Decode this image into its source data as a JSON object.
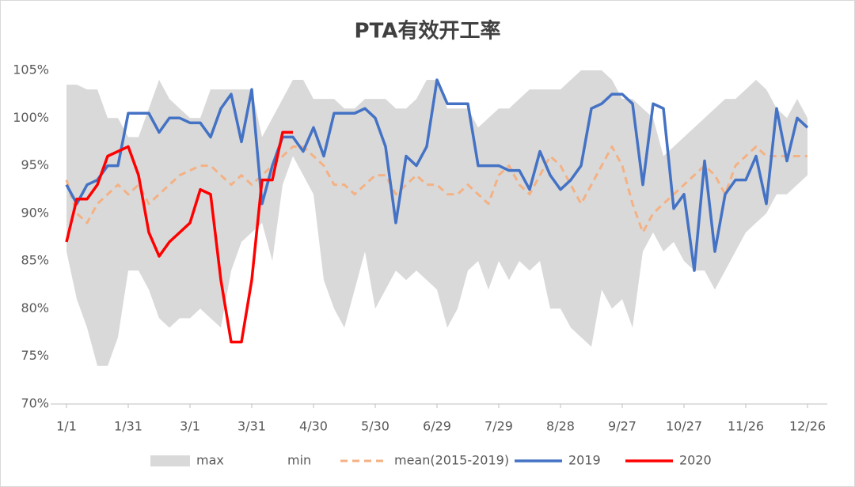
{
  "chart_data": {
    "type": "line",
    "title": "PTA有效开工率",
    "categories": [
      "1/1",
      null,
      null,
      null,
      null,
      null,
      "1/31",
      null,
      null,
      null,
      null,
      null,
      "3/1",
      null,
      null,
      null,
      null,
      null,
      "3/31",
      null,
      null,
      null,
      null,
      null,
      "4/30",
      null,
      null,
      null,
      null,
      null,
      "5/30",
      null,
      null,
      null,
      null,
      null,
      "6/29",
      null,
      null,
      null,
      null,
      null,
      "7/29",
      null,
      null,
      null,
      null,
      null,
      "8/28",
      null,
      null,
      null,
      null,
      null,
      "9/27",
      null,
      null,
      null,
      null,
      null,
      "10/27",
      null,
      null,
      null,
      null,
      null,
      "11/26",
      null,
      null,
      null,
      null,
      null,
      "12/26"
    ],
    "ylim": [
      70,
      105
    ],
    "yticks": [
      {
        "value": 70,
        "label": "70%"
      },
      {
        "value": 75,
        "label": "75%"
      },
      {
        "value": 80,
        "label": "80%"
      },
      {
        "value": 85,
        "label": "85%"
      },
      {
        "value": 90,
        "label": "90%"
      },
      {
        "value": 95,
        "label": "95%"
      },
      {
        "value": 100,
        "label": "100%"
      },
      {
        "value": 105,
        "label": "105%"
      }
    ],
    "series": [
      {
        "name": "max",
        "style": "area",
        "color": "#d9d9d9",
        "values": [
          103.5,
          103.5,
          103,
          103,
          100,
          100,
          98,
          98,
          101,
          104,
          102,
          101,
          100,
          100,
          103,
          103,
          103,
          103,
          103,
          98,
          100,
          102,
          104,
          104,
          102,
          102,
          102,
          101,
          101,
          102,
          102,
          102,
          101,
          101,
          102,
          104,
          104,
          101,
          101,
          101,
          99,
          100,
          101,
          101,
          102,
          103,
          103,
          103,
          103,
          104,
          105,
          105,
          105,
          104,
          102,
          102,
          101,
          100,
          96,
          97,
          98,
          99,
          100,
          101,
          102,
          102,
          103,
          104,
          103,
          101,
          100,
          102,
          100
        ]
      },
      {
        "name": "min",
        "style": "area",
        "color": "#ffffff",
        "values": [
          86,
          81,
          78,
          74,
          74,
          77,
          84,
          84,
          82,
          79,
          78,
          79,
          79,
          80,
          79,
          78,
          84,
          87,
          88,
          89,
          85,
          93,
          96,
          94,
          92,
          83,
          80,
          78,
          82,
          86,
          80,
          82,
          84,
          83,
          84,
          83,
          82,
          78,
          80,
          84,
          85,
          82,
          85,
          83,
          85,
          84,
          85,
          80,
          80,
          78,
          77,
          76,
          82,
          80,
          81,
          78,
          86,
          88,
          86,
          87,
          85,
          84,
          84,
          82,
          84,
          86,
          88,
          89,
          90,
          92,
          92,
          93,
          94
        ]
      },
      {
        "name": "mean(2015-2019)",
        "style": "line",
        "dash": true,
        "color": "#f4b183",
        "values": [
          93.5,
          90,
          89,
          91,
          92,
          93,
          92,
          93,
          91,
          92,
          93,
          94,
          94.5,
          95,
          95,
          94,
          93,
          94,
          93,
          94,
          95,
          96,
          97,
          97,
          96,
          95,
          93,
          93,
          92,
          93,
          94,
          94,
          92,
          93,
          94,
          93,
          93,
          92,
          92,
          93,
          92,
          91,
          94,
          95,
          93,
          92,
          94,
          96,
          95,
          93,
          91,
          93,
          95,
          97,
          95,
          91,
          88,
          90,
          91,
          92,
          93,
          94,
          95,
          94,
          92,
          95,
          96,
          97,
          96,
          96,
          96,
          96,
          96
        ]
      },
      {
        "name": "2019",
        "style": "line",
        "color": "#4472c4",
        "values": [
          93,
          91,
          93,
          93.5,
          95,
          95,
          100.5,
          100.5,
          100.5,
          98.5,
          100,
          100,
          99.5,
          99.5,
          98,
          101,
          102.5,
          97.5,
          103,
          91,
          95,
          98,
          98,
          96.5,
          99,
          96,
          100.5,
          100.5,
          100.5,
          101,
          100,
          97,
          89,
          96,
          95,
          97,
          104,
          101.5,
          101.5,
          101.5,
          95,
          95,
          95,
          94.5,
          94.5,
          92.5,
          96.5,
          94,
          92.5,
          93.5,
          95,
          101,
          101.5,
          102.5,
          102.5,
          101.5,
          93,
          101.5,
          101,
          90.5,
          92,
          84,
          95.5,
          86,
          92,
          93.5,
          93.5,
          96,
          91,
          101,
          95.5,
          100,
          99
        ]
      },
      {
        "name": "2020",
        "style": "line",
        "color": "#ff0000",
        "values": [
          87,
          91.5,
          91.5,
          93,
          96,
          96.5,
          97,
          94,
          88,
          85.5,
          87,
          88,
          89,
          92.5,
          92,
          83,
          76.5,
          76.5,
          83,
          93.5,
          93.5,
          98.5,
          98.5,
          null,
          null,
          null,
          null,
          null,
          null,
          null,
          null,
          null,
          null,
          null,
          null,
          null,
          null,
          null,
          null,
          null,
          null,
          null,
          null,
          null,
          null,
          null,
          null,
          null,
          null,
          null,
          null,
          null,
          null,
          null,
          null,
          null,
          null,
          null,
          null,
          null,
          null,
          null,
          null,
          null,
          null,
          null,
          null,
          null,
          null,
          null,
          null,
          null,
          null
        ]
      }
    ]
  }
}
